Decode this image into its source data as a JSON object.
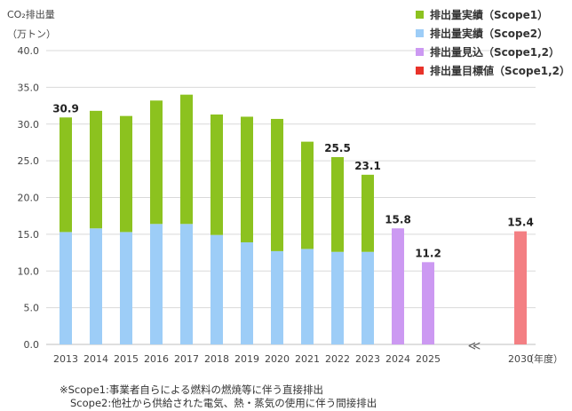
{
  "unit_label": {
    "line1": "CO₂排出量",
    "line2": "（万トン）"
  },
  "legend": [
    {
      "label": "排出量実績（Scope1）",
      "color": "#8cc21f"
    },
    {
      "label": "排出量実績（Scope2）",
      "color": "#9dcdf7"
    },
    {
      "label": "排出量見込（Scope1,2）",
      "color": "#cc99f2"
    },
    {
      "label": "排出量目標値（Scope1,2）",
      "color": "#e8322a"
    }
  ],
  "footnotes": {
    "line1": "※Scope1:事業者自らによる燃料の燃焼等に伴う直接排出",
    "line2": "Scope2:他社から供給された電気、熱・蒸気の使用に伴う間接排出"
  },
  "chart_data": {
    "type": "bar",
    "stacked": true,
    "categories": [
      "2013",
      "2014",
      "2015",
      "2016",
      "2017",
      "2018",
      "2019",
      "2020",
      "2021",
      "2022",
      "2023",
      "2024",
      "2025",
      "2030"
    ],
    "x_unit_label": "（年度）",
    "axis_break_between": [
      "2025",
      "2030"
    ],
    "axis_break_symbol": "≪",
    "series": [
      {
        "name": "排出量実績（Scope2）",
        "color": "#9dcdf7",
        "values": [
          15.3,
          15.8,
          15.3,
          16.4,
          16.4,
          14.9,
          13.9,
          12.7,
          13.0,
          12.6,
          12.6,
          null,
          null,
          null
        ]
      },
      {
        "name": "排出量実績（Scope1）",
        "color": "#8cc21f",
        "values": [
          15.6,
          16.0,
          15.8,
          16.8,
          17.6,
          16.4,
          17.1,
          18.0,
          14.6,
          12.9,
          10.5,
          null,
          null,
          null
        ]
      },
      {
        "name": "排出量見込（Scope1,2）",
        "color": "#cc99f2",
        "values": [
          null,
          null,
          null,
          null,
          null,
          null,
          null,
          null,
          null,
          null,
          null,
          15.8,
          11.2,
          null
        ]
      },
      {
        "name": "排出量目標値（Scope1,2）",
        "color": "#f37f83",
        "values": [
          null,
          null,
          null,
          null,
          null,
          null,
          null,
          null,
          null,
          null,
          null,
          null,
          null,
          15.4
        ]
      }
    ],
    "data_labels": [
      {
        "category": "2013",
        "text": "30.9"
      },
      {
        "category": "2022",
        "text": "25.5"
      },
      {
        "category": "2023",
        "text": "23.1"
      },
      {
        "category": "2024",
        "text": "15.8"
      },
      {
        "category": "2025",
        "text": "11.2"
      },
      {
        "category": "2030",
        "text": "15.4"
      }
    ],
    "ylim": [
      0,
      40
    ],
    "yticks": [
      "0.0",
      "5.0",
      "10.0",
      "15.0",
      "20.0",
      "25.0",
      "30.0",
      "35.0",
      "40.0"
    ],
    "grid": true
  }
}
